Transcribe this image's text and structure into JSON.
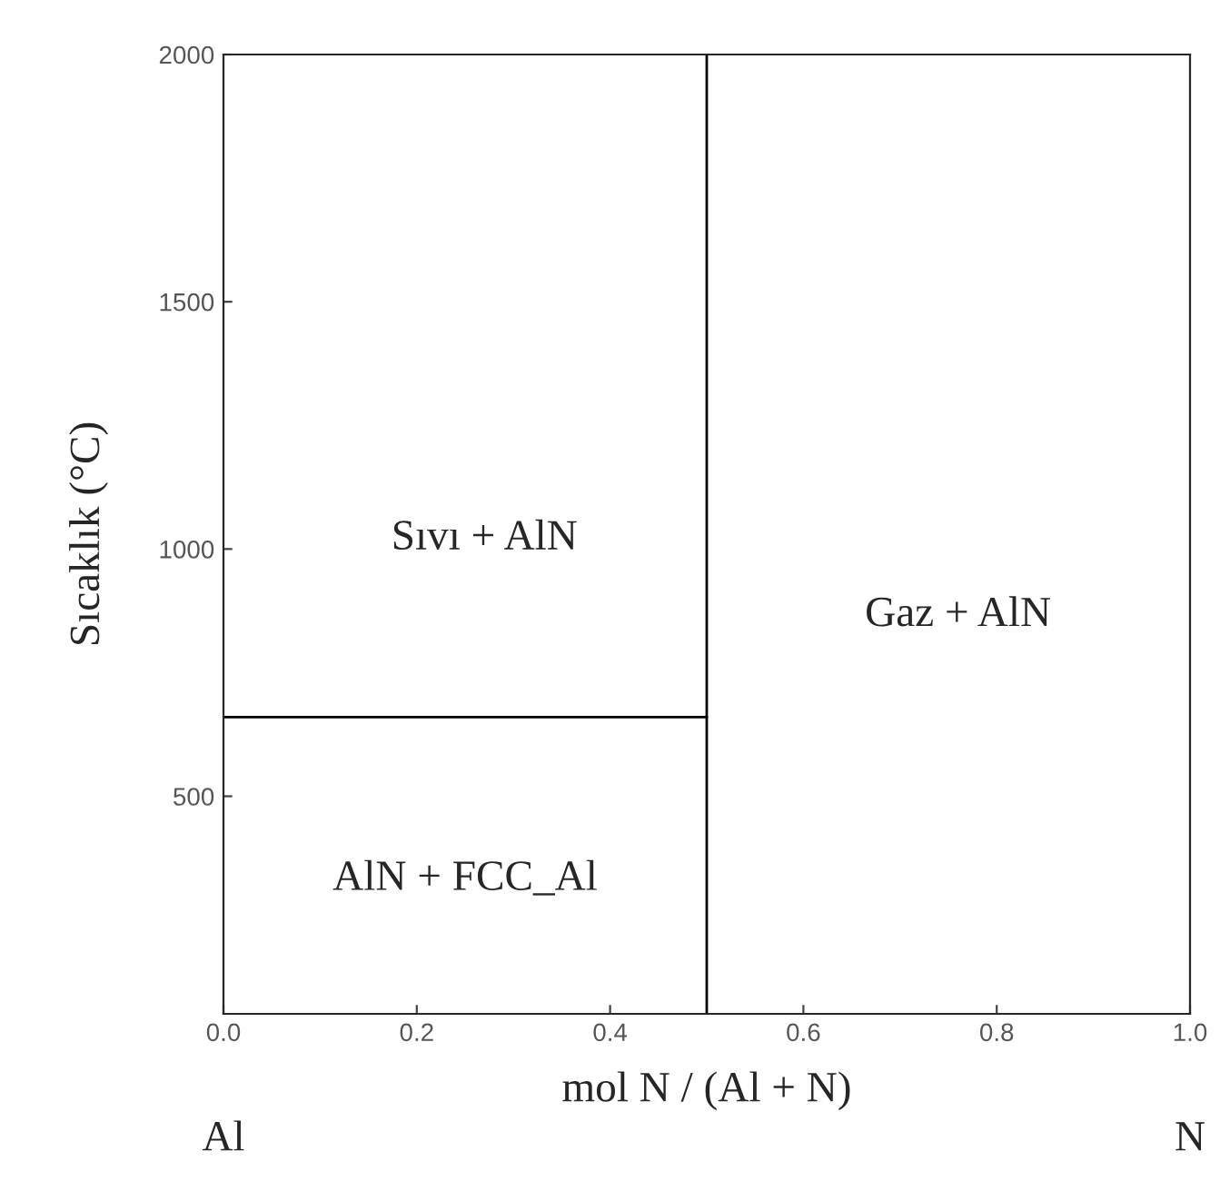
{
  "chart_data": {
    "type": "line",
    "xlabel": "mol N / (Al + N)",
    "ylabel": "Sıcaklık (°C)",
    "xlim": [
      0,
      1
    ],
    "ylim": [
      60,
      2000
    ],
    "xticks": [
      {
        "value": 0,
        "label": "0.0"
      },
      {
        "value": 0.2,
        "label": "0.2"
      },
      {
        "value": 0.4,
        "label": "0.4"
      },
      {
        "value": 0.6,
        "label": "0.6"
      },
      {
        "value": 0.8,
        "label": "0.8"
      },
      {
        "value": 1,
        "label": "1.0"
      }
    ],
    "yticks": [
      500,
      1000,
      1500,
      2000
    ],
    "series": [
      {
        "color": "#000000",
        "x": [
          0,
          0.5
        ],
        "values": [
          660,
          660
        ]
      }
    ],
    "ref_lines": [
      {
        "axis": "x",
        "value": 0.5,
        "color": "#000000"
      }
    ],
    "annotations": [
      "Sıvı + AlN",
      "Gaz + AlN",
      "AlN + FCC_Al",
      "Al",
      "N"
    ],
    "grid": false,
    "legend": false
  }
}
